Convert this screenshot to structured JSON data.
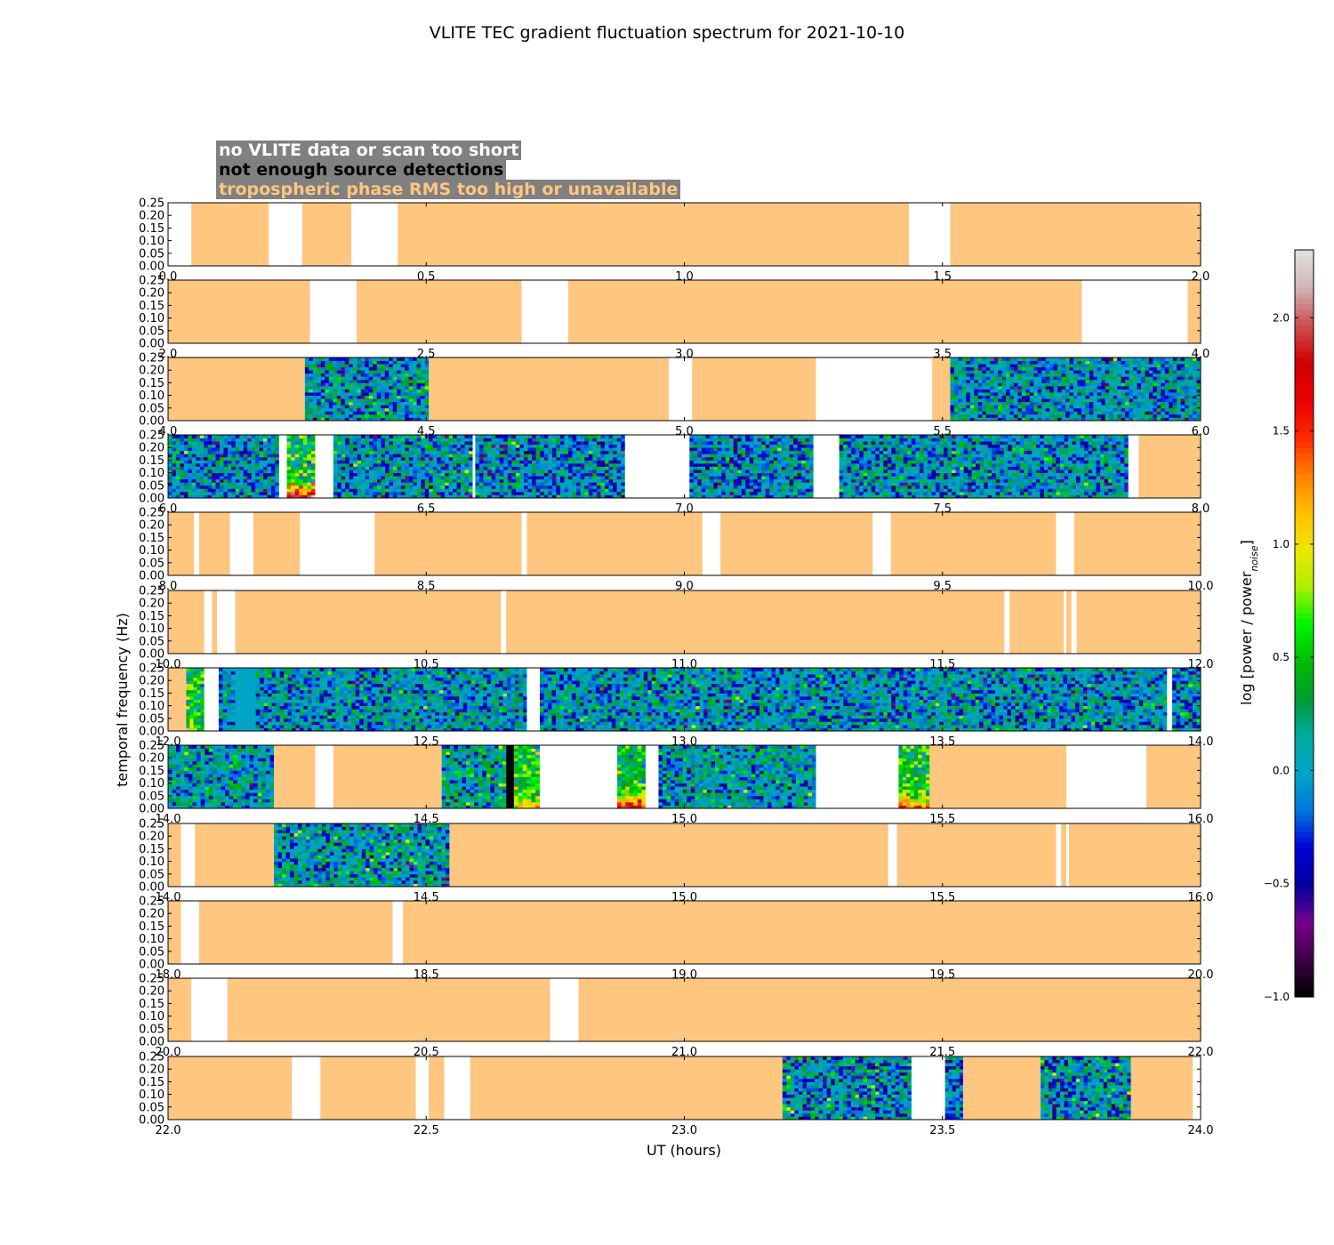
{
  "chart_data": {
    "type": "heatmap",
    "title": "VLITE TEC gradient fluctuation spectrum for 2021-10-10",
    "xlabel": "UT (hours)",
    "ylabel": "temporal frequency (Hz)",
    "ylim": [
      0,
      0.25
    ],
    "yticks": [
      "0.00",
      "0.05",
      "0.10",
      "0.15",
      "0.20",
      "0.25"
    ],
    "colorbar": {
      "label": "log [power / power",
      "label_subscript": "noise",
      "label_end": "]",
      "range": [
        -1.0,
        2.3
      ],
      "ticks": [
        "−1.0",
        "−0.5",
        "0.0",
        "0.5",
        "1.0",
        "1.5",
        "2.0"
      ],
      "tick_values": [
        -1.0,
        -0.5,
        0.0,
        0.5,
        1.0,
        1.5,
        2.0
      ],
      "colormap": "nipy_spectral"
    },
    "legend": {
      "placement": "top-left",
      "items": [
        {
          "label": "no VLITE data or scan too short",
          "color": "#ffffff"
        },
        {
          "label": "not enough source detections",
          "color": "#000000"
        },
        {
          "label": "tropospheric phase RMS too high or unavailable",
          "color": "#ffc67f"
        }
      ]
    },
    "state_colors": {
      "no_data": "#ffffff",
      "tropo": "#ffc67f",
      "few_sources": "#000000"
    },
    "panels": [
      {
        "xlim": [
          0,
          2
        ],
        "xticks": [
          "0.0",
          "0.5",
          "1.0",
          "1.5",
          "2.0"
        ],
        "segments": [
          {
            "start": 0.0,
            "end": 0.045,
            "state": "no_data"
          },
          {
            "start": 0.045,
            "end": 0.195,
            "state": "tropo"
          },
          {
            "start": 0.195,
            "end": 0.26,
            "state": "no_data"
          },
          {
            "start": 0.26,
            "end": 0.355,
            "state": "tropo"
          },
          {
            "start": 0.355,
            "end": 0.445,
            "state": "no_data"
          },
          {
            "start": 0.445,
            "end": 1.435,
            "state": "tropo"
          },
          {
            "start": 1.435,
            "end": 1.515,
            "state": "no_data"
          },
          {
            "start": 1.515,
            "end": 2.0,
            "state": "tropo"
          }
        ]
      },
      {
        "xlim": [
          2,
          4
        ],
        "xticks": [
          "2.0",
          "2.5",
          "3.0",
          "3.5",
          "4.0"
        ],
        "segments": [
          {
            "start": 2.0,
            "end": 2.275,
            "state": "tropo"
          },
          {
            "start": 2.275,
            "end": 2.365,
            "state": "no_data"
          },
          {
            "start": 2.365,
            "end": 2.685,
            "state": "tropo"
          },
          {
            "start": 2.685,
            "end": 2.775,
            "state": "no_data"
          },
          {
            "start": 2.775,
            "end": 3.77,
            "state": "tropo"
          },
          {
            "start": 3.77,
            "end": 3.975,
            "state": "no_data"
          },
          {
            "start": 3.975,
            "end": 4.0,
            "state": "tropo"
          }
        ]
      },
      {
        "xlim": [
          4,
          6
        ],
        "xticks": [
          "4.0",
          "4.5",
          "5.0",
          "5.5",
          "6.0"
        ],
        "segments": [
          {
            "start": 4.0,
            "end": 4.265,
            "state": "tropo"
          },
          {
            "start": 4.265,
            "end": 4.505,
            "state": "data",
            "level": 0.0,
            "spread": 0.45
          },
          {
            "start": 4.505,
            "end": 4.97,
            "state": "tropo"
          },
          {
            "start": 4.97,
            "end": 5.015,
            "state": "no_data"
          },
          {
            "start": 5.015,
            "end": 5.255,
            "state": "tropo"
          },
          {
            "start": 5.255,
            "end": 5.48,
            "state": "no_data"
          },
          {
            "start": 5.48,
            "end": 5.515,
            "state": "tropo"
          },
          {
            "start": 5.515,
            "end": 6.0,
            "state": "data",
            "level": 0.0,
            "spread": 0.42
          }
        ]
      },
      {
        "xlim": [
          6,
          8
        ],
        "xticks": [
          "6.0",
          "6.5",
          "7.0",
          "7.5",
          "8.0"
        ],
        "segments": [
          {
            "start": 6.0,
            "end": 6.215,
            "state": "data",
            "level": -0.05,
            "spread": 0.45
          },
          {
            "start": 6.215,
            "end": 6.23,
            "state": "no_data"
          },
          {
            "start": 6.23,
            "end": 6.285,
            "state": "data",
            "level": 0.4,
            "spread": 0.5,
            "low_boost": 1.5
          },
          {
            "start": 6.285,
            "end": 6.32,
            "state": "no_data"
          },
          {
            "start": 6.32,
            "end": 6.59,
            "state": "data",
            "level": 0.0,
            "spread": 0.45
          },
          {
            "start": 6.59,
            "end": 6.595,
            "state": "no_data"
          },
          {
            "start": 6.595,
            "end": 6.885,
            "state": "data",
            "level": -0.05,
            "spread": 0.45
          },
          {
            "start": 6.885,
            "end": 7.01,
            "state": "no_data"
          },
          {
            "start": 7.01,
            "end": 7.25,
            "state": "data",
            "level": -0.05,
            "spread": 0.45
          },
          {
            "start": 7.25,
            "end": 7.3,
            "state": "no_data"
          },
          {
            "start": 7.3,
            "end": 7.86,
            "state": "data",
            "level": 0.0,
            "spread": 0.42
          },
          {
            "start": 7.86,
            "end": 7.88,
            "state": "no_data"
          },
          {
            "start": 7.88,
            "end": 8.0,
            "state": "tropo"
          }
        ]
      },
      {
        "xlim": [
          8,
          10
        ],
        "xticks": [
          "8.0",
          "8.5",
          "9.0",
          "9.5",
          "10.0"
        ],
        "segments": [
          {
            "start": 8.0,
            "end": 8.05,
            "state": "tropo"
          },
          {
            "start": 8.05,
            "end": 8.06,
            "state": "no_data"
          },
          {
            "start": 8.06,
            "end": 8.12,
            "state": "tropo"
          },
          {
            "start": 8.12,
            "end": 8.165,
            "state": "no_data"
          },
          {
            "start": 8.165,
            "end": 8.255,
            "state": "tropo"
          },
          {
            "start": 8.255,
            "end": 8.4,
            "state": "no_data"
          },
          {
            "start": 8.4,
            "end": 8.685,
            "state": "tropo"
          },
          {
            "start": 8.685,
            "end": 8.695,
            "state": "no_data"
          },
          {
            "start": 8.695,
            "end": 9.035,
            "state": "tropo"
          },
          {
            "start": 9.035,
            "end": 9.07,
            "state": "no_data"
          },
          {
            "start": 9.07,
            "end": 9.365,
            "state": "tropo"
          },
          {
            "start": 9.365,
            "end": 9.4,
            "state": "no_data"
          },
          {
            "start": 9.4,
            "end": 9.72,
            "state": "tropo"
          },
          {
            "start": 9.72,
            "end": 9.755,
            "state": "no_data"
          },
          {
            "start": 9.755,
            "end": 10.0,
            "state": "tropo"
          }
        ]
      },
      {
        "xlim": [
          10,
          12
        ],
        "xticks": [
          "10.0",
          "10.5",
          "11.0",
          "11.5",
          "12.0"
        ],
        "segments": [
          {
            "start": 10.0,
            "end": 10.07,
            "state": "tropo"
          },
          {
            "start": 10.07,
            "end": 10.085,
            "state": "no_data"
          },
          {
            "start": 10.085,
            "end": 10.095,
            "state": "tropo"
          },
          {
            "start": 10.095,
            "end": 10.13,
            "state": "no_data"
          },
          {
            "start": 10.13,
            "end": 10.645,
            "state": "tropo"
          },
          {
            "start": 10.645,
            "end": 10.655,
            "state": "no_data"
          },
          {
            "start": 10.655,
            "end": 11.62,
            "state": "tropo"
          },
          {
            "start": 11.62,
            "end": 11.63,
            "state": "no_data"
          },
          {
            "start": 11.63,
            "end": 11.735,
            "state": "tropo"
          },
          {
            "start": 11.735,
            "end": 11.74,
            "state": "no_data"
          },
          {
            "start": 11.74,
            "end": 11.75,
            "state": "tropo"
          },
          {
            "start": 11.75,
            "end": 11.76,
            "state": "no_data"
          },
          {
            "start": 11.76,
            "end": 12.0,
            "state": "tropo"
          }
        ]
      },
      {
        "xlim": [
          12,
          14
        ],
        "xticks": [
          "12.0",
          "12.5",
          "13.0",
          "13.5",
          "14.0"
        ],
        "segments": [
          {
            "start": 12.0,
            "end": 12.035,
            "state": "tropo"
          },
          {
            "start": 12.035,
            "end": 12.07,
            "state": "data",
            "level": 0.45,
            "spread": 0.4
          },
          {
            "start": 12.07,
            "end": 12.098,
            "state": "no_data"
          },
          {
            "start": 12.098,
            "end": 12.13,
            "state": "data",
            "level": 0.0,
            "spread": 0.35
          },
          {
            "start": 12.13,
            "end": 12.17,
            "state": "data",
            "level": 0.0,
            "spread": 0.02
          },
          {
            "start": 12.17,
            "end": 12.695,
            "state": "data",
            "level": 0.0,
            "spread": 0.42
          },
          {
            "start": 12.695,
            "end": 12.72,
            "state": "no_data"
          },
          {
            "start": 12.72,
            "end": 13.935,
            "state": "data",
            "level": 0.0,
            "spread": 0.42
          },
          {
            "start": 13.935,
            "end": 13.945,
            "state": "no_data"
          },
          {
            "start": 13.945,
            "end": 14.0,
            "state": "data",
            "level": -0.05,
            "spread": 0.45
          }
        ]
      },
      {
        "xlim": [
          14,
          16
        ],
        "xticks": [
          "14.0",
          "14.5",
          "15.0",
          "15.5",
          "16.0"
        ],
        "segments": [
          {
            "start": 14.0,
            "end": 14.205,
            "state": "data",
            "level": 0.05,
            "spread": 0.4
          },
          {
            "start": 14.205,
            "end": 14.285,
            "state": "tropo"
          },
          {
            "start": 14.285,
            "end": 14.32,
            "state": "no_data"
          },
          {
            "start": 14.32,
            "end": 14.53,
            "state": "tropo"
          },
          {
            "start": 14.53,
            "end": 14.64,
            "state": "data",
            "level": 0.1,
            "spread": 0.45
          },
          {
            "start": 14.64,
            "end": 14.655,
            "state": "data",
            "level": 0.3,
            "spread": 0.5
          },
          {
            "start": 14.655,
            "end": 14.67,
            "state": "few_sources"
          },
          {
            "start": 14.67,
            "end": 14.72,
            "state": "data",
            "level": 0.5,
            "spread": 0.4,
            "low_boost": 0.6
          },
          {
            "start": 14.72,
            "end": 14.87,
            "state": "no_data"
          },
          {
            "start": 14.87,
            "end": 14.925,
            "state": "data",
            "level": 0.35,
            "spread": 0.4,
            "low_boost": 1.4
          },
          {
            "start": 14.925,
            "end": 14.95,
            "state": "no_data"
          },
          {
            "start": 14.95,
            "end": 15.255,
            "state": "data",
            "level": 0.05,
            "spread": 0.42
          },
          {
            "start": 15.255,
            "end": 15.415,
            "state": "no_data"
          },
          {
            "start": 15.415,
            "end": 15.475,
            "state": "data",
            "level": 0.45,
            "spread": 0.4,
            "low_boost": 0.9
          },
          {
            "start": 15.475,
            "end": 15.74,
            "state": "tropo"
          },
          {
            "start": 15.74,
            "end": 15.895,
            "state": "no_data"
          },
          {
            "start": 15.895,
            "end": 16.0,
            "state": "tropo"
          }
        ]
      },
      {
        "xlim": [
          14,
          16
        ],
        "xticks": [
          "14.0",
          "14.5",
          "15.0",
          "15.5",
          "16.0"
        ],
        "segments": [
          {
            "start": 14.0,
            "end": 14.025,
            "state": "tropo"
          },
          {
            "start": 14.025,
            "end": 14.052,
            "state": "no_data"
          },
          {
            "start": 14.052,
            "end": 14.205,
            "state": "tropo"
          },
          {
            "start": 14.205,
            "end": 14.545,
            "state": "data",
            "level": 0.05,
            "spread": 0.45
          },
          {
            "start": 14.545,
            "end": 15.395,
            "state": "tropo"
          },
          {
            "start": 15.395,
            "end": 15.412,
            "state": "no_data"
          },
          {
            "start": 15.412,
            "end": 15.72,
            "state": "tropo"
          },
          {
            "start": 15.72,
            "end": 15.73,
            "state": "no_data"
          },
          {
            "start": 15.73,
            "end": 15.74,
            "state": "tropo"
          },
          {
            "start": 15.74,
            "end": 15.745,
            "state": "no_data"
          },
          {
            "start": 15.745,
            "end": 16.0,
            "state": "tropo"
          }
        ]
      },
      {
        "xlim": [
          18,
          20
        ],
        "xticks": [
          "18.0",
          "18.5",
          "19.0",
          "19.5",
          "20.0"
        ],
        "segments": [
          {
            "start": 18.0,
            "end": 18.025,
            "state": "tropo"
          },
          {
            "start": 18.025,
            "end": 18.06,
            "state": "no_data"
          },
          {
            "start": 18.06,
            "end": 18.435,
            "state": "tropo"
          },
          {
            "start": 18.435,
            "end": 18.455,
            "state": "no_data"
          },
          {
            "start": 18.455,
            "end": 20.0,
            "state": "tropo"
          }
        ]
      },
      {
        "xlim": [
          20,
          22
        ],
        "xticks": [
          "20.0",
          "20.5",
          "21.0",
          "21.5",
          "22.0"
        ],
        "segments": [
          {
            "start": 20.0,
            "end": 20.045,
            "state": "tropo"
          },
          {
            "start": 20.045,
            "end": 20.115,
            "state": "no_data"
          },
          {
            "start": 20.115,
            "end": 20.74,
            "state": "tropo"
          },
          {
            "start": 20.74,
            "end": 20.795,
            "state": "no_data"
          },
          {
            "start": 20.795,
            "end": 22.0,
            "state": "tropo"
          }
        ]
      },
      {
        "xlim": [
          22,
          24
        ],
        "xticks": [
          "22.0",
          "22.5",
          "23.0",
          "23.5",
          "24.0"
        ],
        "segments": [
          {
            "start": 22.0,
            "end": 22.24,
            "state": "tropo"
          },
          {
            "start": 22.24,
            "end": 22.295,
            "state": "no_data"
          },
          {
            "start": 22.295,
            "end": 22.48,
            "state": "tropo"
          },
          {
            "start": 22.48,
            "end": 22.505,
            "state": "no_data"
          },
          {
            "start": 22.505,
            "end": 22.535,
            "state": "tropo"
          },
          {
            "start": 22.535,
            "end": 22.585,
            "state": "no_data"
          },
          {
            "start": 22.585,
            "end": 23.19,
            "state": "tropo"
          },
          {
            "start": 23.19,
            "end": 23.44,
            "state": "data",
            "level": 0.0,
            "spread": 0.5
          },
          {
            "start": 23.44,
            "end": 23.505,
            "state": "no_data"
          },
          {
            "start": 23.505,
            "end": 23.54,
            "state": "data",
            "level": -0.1,
            "spread": 0.4
          },
          {
            "start": 23.54,
            "end": 23.69,
            "state": "tropo"
          },
          {
            "start": 23.69,
            "end": 23.865,
            "state": "data",
            "level": 0.0,
            "spread": 0.5
          },
          {
            "start": 23.865,
            "end": 23.985,
            "state": "tropo"
          },
          {
            "start": 23.985,
            "end": 24.0,
            "state": "no_data"
          }
        ]
      }
    ]
  }
}
